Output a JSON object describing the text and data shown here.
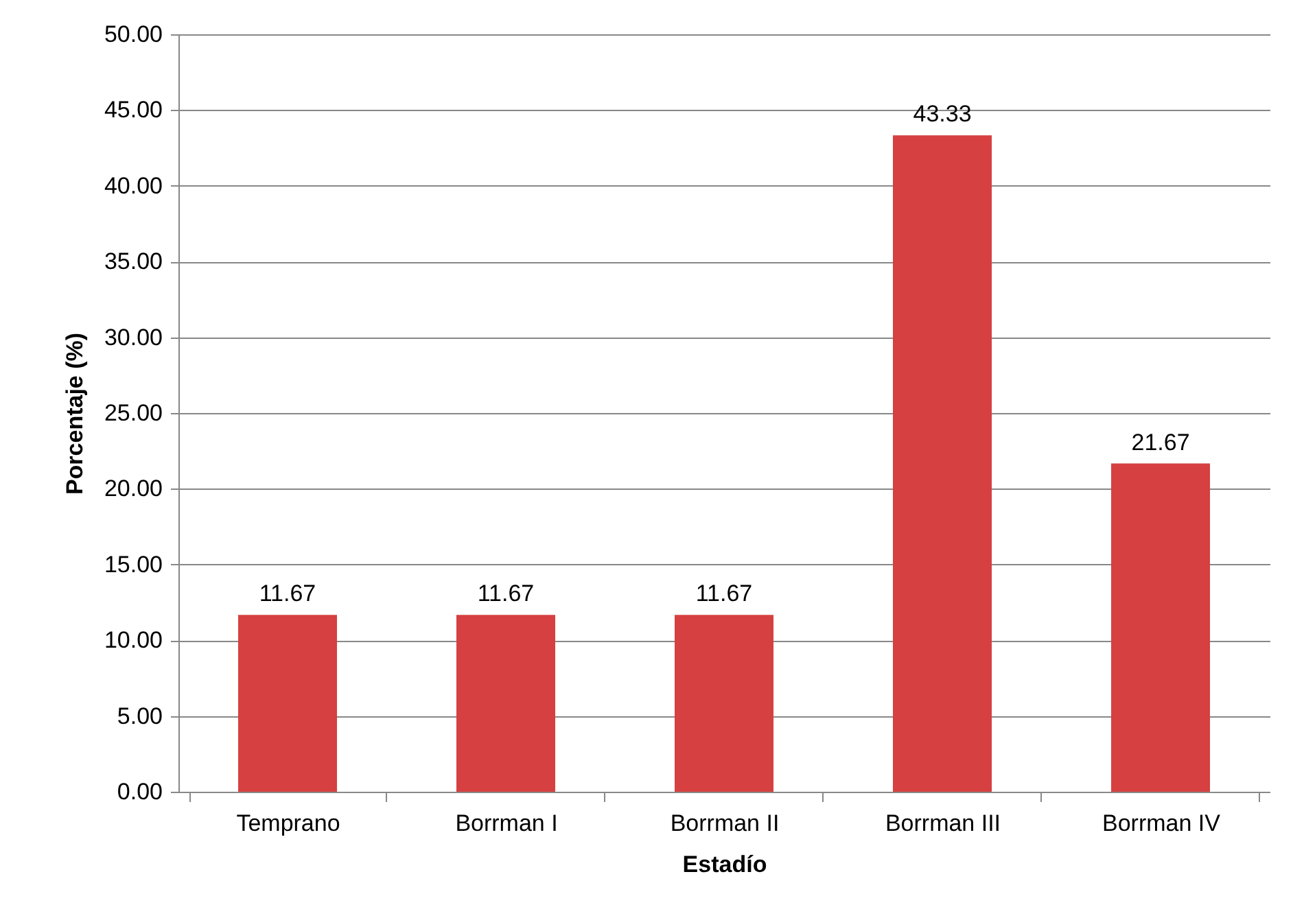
{
  "chart_data": {
    "type": "bar",
    "xlabel": "Estadío",
    "ylabel": "Porcentaje (%)",
    "categories": [
      "Temprano",
      "Borrman I",
      "Borrman II",
      "Borrman III",
      "Borrman IV"
    ],
    "values": [
      11.67,
      11.67,
      11.67,
      43.33,
      21.67
    ],
    "color": "#d64040",
    "ylim": [
      0,
      50
    ],
    "yticks": [
      {
        "value": 0,
        "label": "0.00"
      },
      {
        "value": 5,
        "label": "5.00"
      },
      {
        "value": 10,
        "label": "10.00"
      },
      {
        "value": 15,
        "label": "15.00"
      },
      {
        "value": 20,
        "label": "20.00"
      },
      {
        "value": 25,
        "label": "25.00"
      },
      {
        "value": 30,
        "label": "30.00"
      },
      {
        "value": 35,
        "label": "35.00"
      },
      {
        "value": 40,
        "label": "40.00"
      },
      {
        "value": 45,
        "label": "45.00"
      },
      {
        "value": 50,
        "label": "50.00"
      }
    ],
    "grid": "y",
    "data_labels": true
  }
}
